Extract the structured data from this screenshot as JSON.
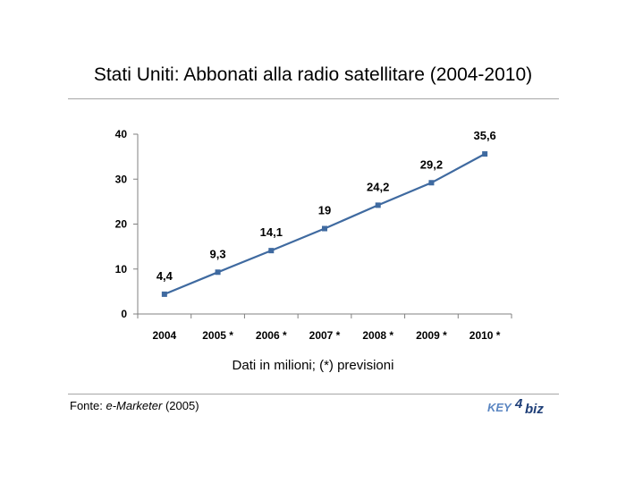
{
  "chart_data": {
    "type": "line",
    "title": "Stati Uniti: Abbonati alla radio satellitare (2004-2010)",
    "categories": [
      "2004",
      "2005 *",
      "2006 *",
      "2007 *",
      "2008 *",
      "2009 *",
      "2010 *"
    ],
    "series": [
      {
        "values": [
          4.4,
          9.3,
          14.1,
          19,
          24.2,
          29.2,
          35.6
        ]
      }
    ],
    "data_labels": [
      "4,4",
      "9,3",
      "14,1",
      "19",
      "24,2",
      "29,2",
      "35,6"
    ],
    "yticks": [
      "0",
      "10",
      "20",
      "30",
      "40"
    ],
    "ylim": [
      0,
      40
    ],
    "grid": false,
    "legend": "none",
    "line_color": "#3f6aa0",
    "marker_color": "#3f6aa0"
  },
  "note": "Dati in milioni; (*) previsioni",
  "source": {
    "prefix": "Fonte: ",
    "name": "e-Marketer",
    "suffix": " (2005)"
  },
  "logo": {
    "text_key": "KEY",
    "text_num": "4",
    "text_biz": "biz",
    "color_dark": "#1f3f78",
    "color_mid": "#5b86c2"
  }
}
